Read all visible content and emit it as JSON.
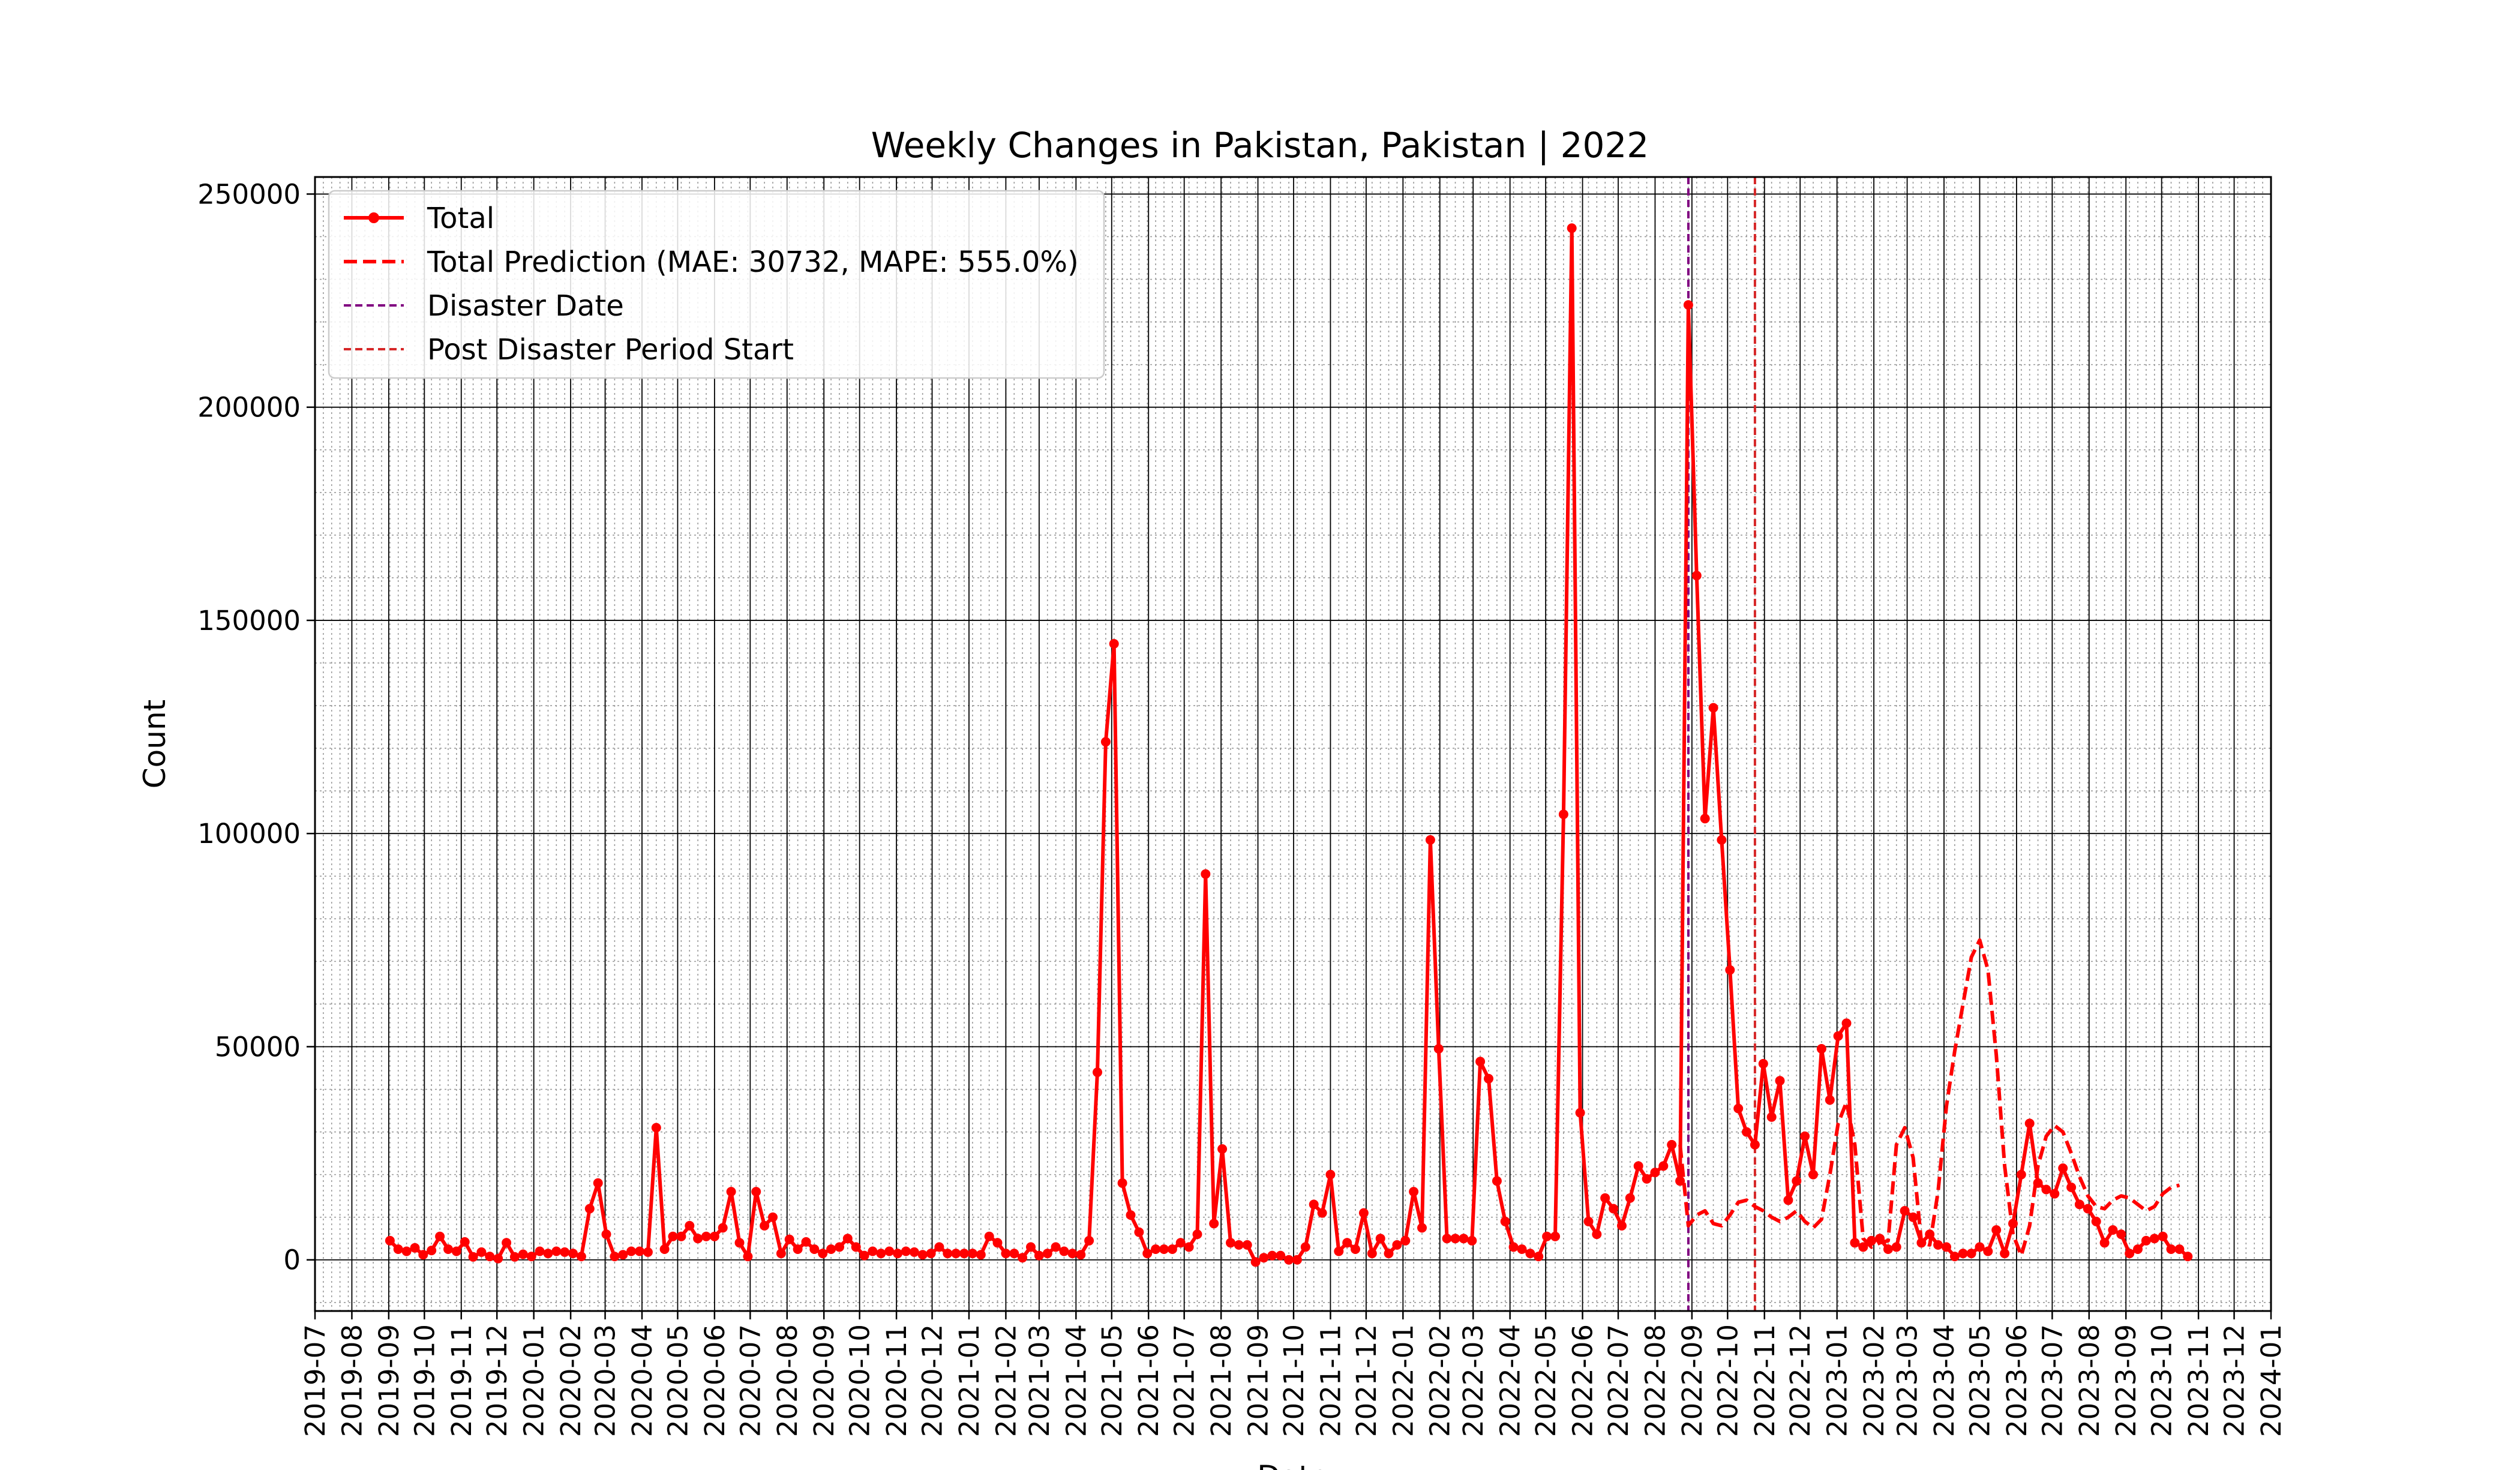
{
  "chart_data": {
    "type": "line",
    "title": "Weekly Changes in Pakistan, Pakistan | 2022",
    "xlabel": "Date",
    "ylabel": "Count",
    "xlim": [
      "2019-07-01",
      "2024-01-01"
    ],
    "ylim": [
      -12000,
      254000
    ],
    "y_ticks": [
      0,
      50000,
      100000,
      150000,
      200000,
      250000
    ],
    "x_ticks": [
      "2019-07",
      "2019-08",
      "2019-09",
      "2019-10",
      "2019-11",
      "2019-12",
      "2020-01",
      "2020-02",
      "2020-03",
      "2020-04",
      "2020-05",
      "2020-06",
      "2020-07",
      "2020-08",
      "2020-09",
      "2020-10",
      "2020-11",
      "2020-12",
      "2021-01",
      "2021-02",
      "2021-03",
      "2021-04",
      "2021-05",
      "2021-06",
      "2021-07",
      "2021-08",
      "2021-09",
      "2021-10",
      "2021-11",
      "2021-12",
      "2022-01",
      "2022-02",
      "2022-03",
      "2022-04",
      "2022-05",
      "2022-06",
      "2022-07",
      "2022-08",
      "2022-09",
      "2022-10",
      "2022-11",
      "2022-12",
      "2023-01",
      "2023-02",
      "2023-03",
      "2023-04",
      "2023-05",
      "2023-06",
      "2023-07",
      "2023-08",
      "2023-09",
      "2023-10",
      "2023-11",
      "2023-12",
      "2024-01"
    ],
    "grid": true,
    "minor_grid": true,
    "legend_position": "upper-left",
    "colors": {
      "total": "#ff0000",
      "prediction": "#ff0000",
      "disaster": "#800080",
      "post": "#d62728",
      "grid_major": "#000000",
      "grid_minor": "#9a9a9a"
    },
    "legend": [
      {
        "key": "total",
        "label": "Total"
      },
      {
        "key": "prediction",
        "label": "Total Prediction (MAE: 30732, MAPE: 555.0%)"
      },
      {
        "key": "disaster",
        "label": "Disaster Date"
      },
      {
        "key": "post",
        "label": "Post Disaster Period Start"
      }
    ],
    "disaster_date": "2022-08-29",
    "post_disaster_start": "2022-10-24",
    "total": {
      "start": "2019-09-02",
      "interval_days": 7,
      "values": [
        4500,
        2500,
        2000,
        2800,
        1200,
        2200,
        5500,
        2500,
        2000,
        4200,
        700,
        1800,
        800,
        300,
        4000,
        700,
        1300,
        800,
        2000,
        1500,
        2000,
        1800,
        1500,
        800,
        12000,
        18000,
        6000,
        800,
        1200,
        2000,
        2000,
        1800,
        31000,
        2500,
        5500,
        5500,
        8000,
        5000,
        5500,
        5500,
        7500,
        16000,
        4000,
        800,
        16000,
        8000,
        10000,
        1500,
        4800,
        2500,
        4200,
        2500,
        1500,
        2500,
        3000,
        5000,
        3000,
        1000,
        2000,
        1500,
        2000,
        1500,
        2000,
        1800,
        1200,
        1500,
        3000,
        1500,
        1500,
        1500,
        1500,
        1200,
        5500,
        4000,
        1500,
        1500,
        500,
        3000,
        1000,
        1500,
        3000,
        2000,
        1500,
        1200,
        4500,
        44000,
        121500,
        144500,
        18000,
        10500,
        6500,
        1500,
        2500,
        2500,
        2500,
        4000,
        3000,
        6000,
        90500,
        8500,
        26000,
        4000,
        3500,
        3500,
        -500,
        500,
        1000,
        1000,
        0,
        0,
        3000,
        13000,
        11000,
        20000,
        2000,
        4000,
        2500,
        11000,
        1500,
        5000,
        1500,
        3500,
        4500,
        16000,
        7500,
        98500,
        49500,
        5000,
        5000,
        5000,
        4500,
        46500,
        42500,
        18500,
        9000,
        3000,
        2500,
        1500,
        800,
        5500,
        5500,
        104500,
        242000,
        34500,
        9000,
        6000,
        14500,
        12000,
        8000,
        14500,
        22000,
        19000,
        20500,
        22000,
        27000,
        18500,
        224000,
        160500,
        103500,
        129500,
        98500,
        68000,
        35500,
        30000,
        27000,
        46000,
        33500,
        42000,
        14000,
        18500,
        29000,
        20000,
        49500,
        37500,
        52500,
        55500,
        4000,
        3000,
        4500,
        5000,
        2500,
        3000,
        11500,
        10000,
        4000,
        6000,
        3500,
        3000,
        800,
        1500,
        1500,
        3000,
        2000,
        7000,
        1500,
        8500,
        20000,
        32000,
        18000,
        16500,
        15500,
        21500,
        17000,
        13000,
        12000,
        9000,
        4000,
        7000,
        6000,
        1500,
        2500,
        4500,
        5000,
        5500,
        2500,
        2500,
        800
      ]
    },
    "prediction": {
      "points": [
        [
          "2022-08-22",
          27000
        ],
        [
          "2022-08-29",
          8000
        ],
        [
          "2022-09-05",
          10500
        ],
        [
          "2022-09-12",
          11500
        ],
        [
          "2022-09-19",
          8500
        ],
        [
          "2022-09-26",
          8000
        ],
        [
          "2022-10-03",
          10500
        ],
        [
          "2022-10-10",
          13500
        ],
        [
          "2022-10-17",
          14000
        ],
        [
          "2022-10-24",
          12500
        ],
        [
          "2022-10-31",
          11500
        ],
        [
          "2022-11-07",
          10000
        ],
        [
          "2022-11-14",
          9000
        ],
        [
          "2022-11-21",
          10000
        ],
        [
          "2022-11-28",
          11500
        ],
        [
          "2022-12-05",
          9000
        ],
        [
          "2022-12-12",
          7500
        ],
        [
          "2022-12-19",
          9500
        ],
        [
          "2022-12-26",
          20000
        ],
        [
          "2023-01-02",
          32000
        ],
        [
          "2023-01-09",
          37000
        ],
        [
          "2023-01-16",
          27000
        ],
        [
          "2023-01-23",
          5000
        ],
        [
          "2023-01-30",
          3000
        ],
        [
          "2023-02-06",
          4000
        ],
        [
          "2023-02-13",
          4500
        ],
        [
          "2023-02-20",
          27000
        ],
        [
          "2023-02-27",
          31000
        ],
        [
          "2023-03-06",
          24000
        ],
        [
          "2023-03-13",
          4000
        ],
        [
          "2023-03-20",
          3500
        ],
        [
          "2023-03-27",
          16000
        ],
        [
          "2023-04-03",
          36000
        ],
        [
          "2023-04-10",
          49000
        ],
        [
          "2023-04-17",
          60000
        ],
        [
          "2023-04-24",
          71000
        ],
        [
          "2023-05-01",
          75000
        ],
        [
          "2023-05-08",
          68000
        ],
        [
          "2023-05-15",
          48000
        ],
        [
          "2023-05-22",
          22000
        ],
        [
          "2023-05-29",
          6000
        ],
        [
          "2023-06-05",
          1000
        ],
        [
          "2023-06-12",
          8000
        ],
        [
          "2023-06-19",
          22000
        ],
        [
          "2023-06-26",
          29000
        ],
        [
          "2023-07-03",
          31500
        ],
        [
          "2023-07-10",
          30000
        ],
        [
          "2023-07-17",
          25000
        ],
        [
          "2023-07-24",
          19500
        ],
        [
          "2023-07-31",
          15000
        ],
        [
          "2023-08-07",
          12500
        ],
        [
          "2023-08-14",
          12000
        ],
        [
          "2023-08-21",
          14000
        ],
        [
          "2023-08-28",
          15000
        ],
        [
          "2023-09-04",
          14500
        ],
        [
          "2023-09-11",
          13000
        ],
        [
          "2023-09-18",
          11500
        ],
        [
          "2023-09-25",
          12500
        ],
        [
          "2023-10-02",
          15500
        ],
        [
          "2023-10-09",
          17000
        ],
        [
          "2023-10-16",
          17500
        ]
      ]
    }
  }
}
